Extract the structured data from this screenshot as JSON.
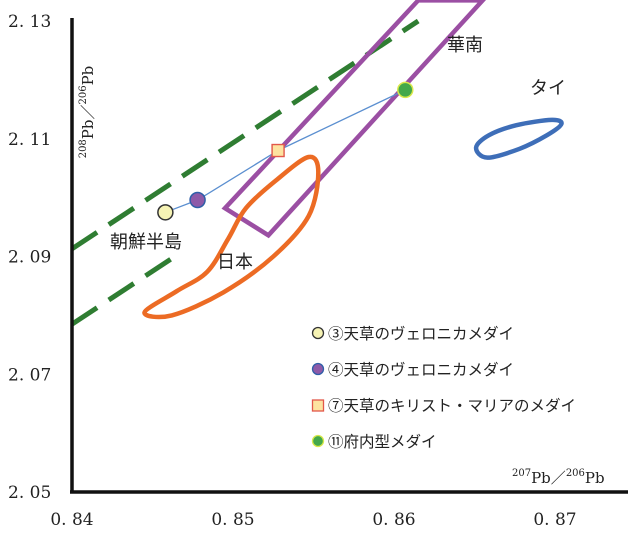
{
  "chart_data": {
    "type": "scatter",
    "xlabel": {
      "sup1": "207",
      "base1": "Pb",
      "sep": "／",
      "sup2": "206",
      "base2": "Pb"
    },
    "ylabel": {
      "sup1": "208",
      "base1": "Pb",
      "sep": "／",
      "sup2": "206",
      "base2": "Pb"
    },
    "xlim": [
      0.84,
      0.875
    ],
    "ylim": [
      2.05,
      2.13
    ],
    "xticks": [
      {
        "value": 0.84,
        "label": "0. 84"
      },
      {
        "value": 0.85,
        "label": "0. 85"
      },
      {
        "value": 0.86,
        "label": "0. 86"
      },
      {
        "value": 0.87,
        "label": "0. 87"
      }
    ],
    "yticks": [
      {
        "value": 2.05,
        "label": "2. 05"
      },
      {
        "value": 2.07,
        "label": "2. 07"
      },
      {
        "value": 2.09,
        "label": "2. 09"
      },
      {
        "value": 2.11,
        "label": "2. 11"
      },
      {
        "value": 2.13,
        "label": "2. 13"
      }
    ],
    "regions": [
      {
        "name": "朝鮮半島",
        "kind": "dashed-band",
        "color": "#2f7d32",
        "upper": [
          [
            0.84,
            2.0913
          ],
          [
            0.8615,
            2.13
          ]
        ],
        "lower": [
          [
            0.84,
            2.0785
          ],
          [
            0.8465,
            2.0902
          ]
        ]
      },
      {
        "name": "華南",
        "kind": "polygon",
        "color": "#9b4fa3",
        "points": [
          [
            0.8495,
            2.0982
          ],
          [
            0.8522,
            2.0936
          ],
          [
            0.8655,
            2.1335
          ],
          [
            0.8615,
            2.1335
          ]
        ]
      },
      {
        "name": "日本",
        "kind": "closed-curve",
        "color": "#ec6b24",
        "points": [
          [
            0.8445,
            2.0805
          ],
          [
            0.8465,
            2.0841
          ],
          [
            0.8484,
            2.0874
          ],
          [
            0.8497,
            2.093
          ],
          [
            0.8508,
            2.0982
          ],
          [
            0.8527,
            2.103
          ],
          [
            0.8547,
            2.1069
          ],
          [
            0.8553,
            2.1043
          ],
          [
            0.8547,
            2.0969
          ],
          [
            0.8525,
            2.09
          ],
          [
            0.8494,
            2.0839
          ],
          [
            0.8462,
            2.08
          ]
        ]
      },
      {
        "name": "タイ",
        "kind": "closed-curve",
        "color": "#3e6eb8",
        "points": [
          [
            0.8658,
            2.1068
          ],
          [
            0.8678,
            2.1083
          ],
          [
            0.8695,
            2.1106
          ],
          [
            0.8704,
            2.1125
          ],
          [
            0.8698,
            2.1132
          ],
          [
            0.8676,
            2.1123
          ],
          [
            0.8659,
            2.1106
          ],
          [
            0.8651,
            2.1085
          ]
        ]
      }
    ],
    "series": [
      {
        "name": "③天草のヴェロニカメダイ",
        "x": 0.8458,
        "y": 2.0975,
        "marker": "circle",
        "fill": "#f6f3b4",
        "edge": "#333333"
      },
      {
        "name": "④天草のヴェロニカメダイ",
        "x": 0.8478,
        "y": 2.0996,
        "marker": "circle",
        "fill": "#8e5aa8",
        "edge": "#2f5fa8"
      },
      {
        "name": "⑦天草のキリスト・マリアのメダイ",
        "x": 0.8528,
        "y": 2.108,
        "marker": "square",
        "fill": "#fde3a0",
        "edge": "#e2584a"
      },
      {
        "name": "⑪府内型メダイ",
        "x": 0.8607,
        "y": 2.1183,
        "marker": "circle",
        "fill": "#43a84a",
        "edge": "#d9e84b"
      }
    ],
    "connector": {
      "color": "#5b8fd0",
      "points": [
        [
          0.8458,
          2.0975
        ],
        [
          0.8478,
          2.0996
        ],
        [
          0.8528,
          2.108
        ],
        [
          0.8607,
          2.1183
        ]
      ]
    },
    "legend": {
      "position": "bottom-right"
    },
    "grid": false
  }
}
